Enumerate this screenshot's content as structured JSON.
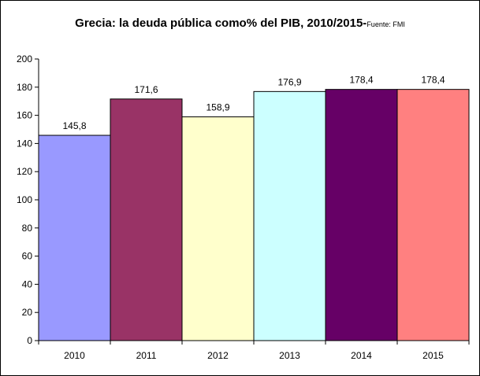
{
  "chart_data": {
    "type": "bar",
    "title": "Grecia: la deuda pública como% del PIB, 2010/2015-",
    "source": "Fuente: FMI",
    "categories": [
      "2010",
      "2011",
      "2012",
      "2013",
      "2014",
      "2015"
    ],
    "values": [
      145.8,
      171.6,
      158.9,
      176.9,
      178.4,
      178.4
    ],
    "value_labels": [
      "145,8",
      "171,6",
      "158,9",
      "176,9",
      "178,4",
      "178,4"
    ],
    "bar_colors": [
      "#9999ff",
      "#993366",
      "#ffffcc",
      "#ccffff",
      "#660066",
      "#ff8080"
    ],
    "ylim": [
      0,
      200
    ],
    "yticks": [
      0,
      20,
      40,
      60,
      80,
      100,
      120,
      140,
      160,
      180,
      200
    ],
    "xlabel": "",
    "ylabel": "",
    "grid": false,
    "legend": "none"
  }
}
